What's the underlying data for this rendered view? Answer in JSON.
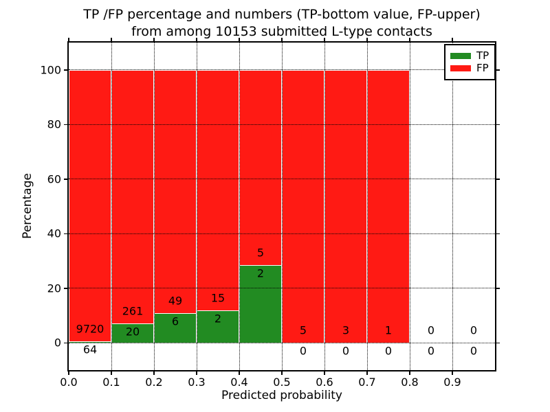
{
  "figure": {
    "title_line1": "TP /FP percentage and numbers (TP-bottom value, FP-upper)",
    "title_line2": "from among 10153 submitted L-type contacts",
    "xlabel": "Predicted probability",
    "ylabel": "Percentage"
  },
  "legend": {
    "entries": [
      {
        "label": "TP",
        "color": "#228b22"
      },
      {
        "label": "FP",
        "color": "#ff1a14"
      }
    ]
  },
  "chart_data": {
    "type": "bar",
    "subtype": "stacked-100-percent-histogram",
    "title": "TP /FP percentage and numbers (TP-bottom value, FP-upper) from among 10153 submitted L-type contacts",
    "xlabel": "Predicted probability",
    "ylabel": "Percentage",
    "xlim": [
      0.0,
      1.0
    ],
    "ylim": [
      -10,
      110
    ],
    "xticks": [
      0.0,
      0.1,
      0.2,
      0.3,
      0.4,
      0.5,
      0.6,
      0.7,
      0.8,
      0.9
    ],
    "yticks": [
      0,
      20,
      40,
      60,
      80,
      100
    ],
    "grid": "dotted-black-both-axes",
    "legend_position": "upper-right",
    "colors": {
      "tp_green": "#228b22",
      "fp_red": "#ff1a14",
      "bar_edge": "#ffffff",
      "grid": "#000000"
    },
    "bin_starts": [
      0.0,
      0.1,
      0.2,
      0.3,
      0.4,
      0.5,
      0.6,
      0.7,
      0.8,
      0.9
    ],
    "bin_width": 0.1,
    "series": [
      {
        "name": "TP",
        "counts": [
          64,
          20,
          6,
          2,
          2,
          0,
          0,
          0,
          0,
          0
        ]
      },
      {
        "name": "FP",
        "counts": [
          9720,
          261,
          49,
          15,
          5,
          5,
          3,
          1,
          0,
          0
        ]
      }
    ],
    "tp_percent_of_bin": [
      0.65,
      7.12,
      10.91,
      11.76,
      28.57,
      0,
      0,
      0,
      null,
      null
    ],
    "bars_drawn_up_to_x": 0.8
  }
}
